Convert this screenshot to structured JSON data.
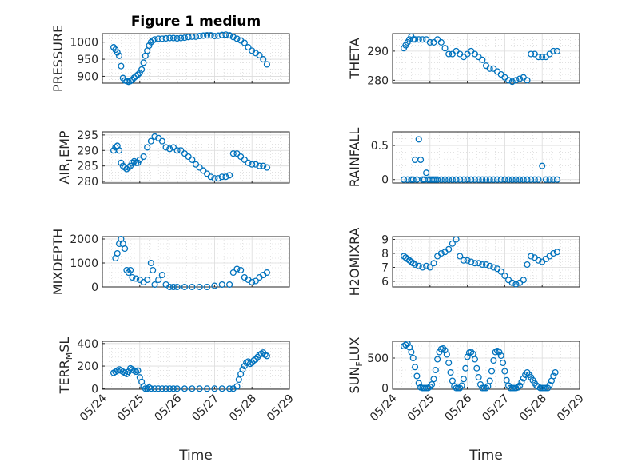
{
  "chart_data": [
    {
      "type": "scatter",
      "title": "Figure 1 medium",
      "ylabel": "PRESSURE",
      "ylabel_main": "PRESSURE",
      "ylabel_sub": "",
      "ylabel_tail": "",
      "xlim": [
        0,
        5
      ],
      "ylim": [
        880,
        1025
      ],
      "yticks": [
        "900",
        "950",
        "1000"
      ],
      "ytick_values": [
        900,
        950,
        1000
      ],
      "x": [
        0.3,
        0.35,
        0.4,
        0.45,
        0.5,
        0.55,
        0.6,
        0.65,
        0.7,
        0.75,
        0.8,
        0.85,
        0.9,
        0.95,
        1.0,
        1.05,
        1.1,
        1.15,
        1.2,
        1.25,
        1.3,
        1.35,
        1.4,
        1.5,
        1.6,
        1.7,
        1.8,
        1.9,
        2.0,
        2.1,
        2.2,
        2.3,
        2.4,
        2.5,
        2.6,
        2.7,
        2.8,
        2.9,
        3.0,
        3.1,
        3.2,
        3.3,
        3.4,
        3.5,
        3.6,
        3.7,
        3.8,
        3.9,
        4.0,
        4.1,
        4.2,
        4.3,
        4.4
      ],
      "y": [
        985,
        978,
        970,
        960,
        930,
        895,
        888,
        886,
        884,
        886,
        890,
        896,
        900,
        905,
        910,
        920,
        940,
        960,
        975,
        990,
        1000,
        1005,
        1008,
        1010,
        1010,
        1011,
        1012,
        1012,
        1011,
        1012,
        1013,
        1015,
        1016,
        1016,
        1018,
        1019,
        1020,
        1020,
        1018,
        1019,
        1021,
        1022,
        1020,
        1015,
        1010,
        1005,
        998,
        985,
        975,
        968,
        962,
        950,
        935
      ]
    },
    {
      "type": "scatter",
      "title": "",
      "ylabel": "THETA",
      "ylabel_main": "THETA",
      "ylabel_sub": "",
      "ylabel_tail": "",
      "xlim": [
        0,
        5
      ],
      "ylim": [
        279,
        296
      ],
      "yticks": [
        "280",
        "290"
      ],
      "ytick_values": [
        280,
        290
      ],
      "x": [
        0.3,
        0.35,
        0.4,
        0.45,
        0.5,
        0.55,
        0.6,
        0.7,
        0.8,
        0.9,
        1.0,
        1.1,
        1.2,
        1.3,
        1.4,
        1.5,
        1.6,
        1.7,
        1.8,
        1.9,
        2.0,
        2.1,
        2.2,
        2.3,
        2.4,
        2.5,
        2.6,
        2.7,
        2.8,
        2.9,
        3.0,
        3.1,
        3.2,
        3.3,
        3.4,
        3.5,
        3.6,
        3.7,
        3.8,
        3.9,
        4.0,
        4.1,
        4.2,
        4.3,
        4.4
      ],
      "y": [
        291,
        292,
        293,
        294,
        295,
        294,
        294,
        294,
        294,
        294,
        293,
        293,
        294,
        293,
        291,
        289,
        289,
        290,
        289,
        288,
        289,
        290,
        289,
        288,
        287,
        285,
        284,
        284,
        283,
        282,
        281,
        280,
        279.5,
        280,
        280.5,
        281,
        280,
        289,
        289,
        288,
        288,
        288,
        289,
        290,
        290
      ]
    },
    {
      "type": "scatter",
      "title": "",
      "ylabel": "AIR_TEMP",
      "ylabel_main": "AIR",
      "ylabel_sub": "T",
      "ylabel_tail": "EMP",
      "xlim": [
        0,
        5
      ],
      "ylim": [
        279.5,
        296
      ],
      "yticks": [
        "280",
        "285",
        "290",
        "295"
      ],
      "ytick_values": [
        280,
        285,
        290,
        295
      ],
      "x": [
        0.3,
        0.35,
        0.4,
        0.45,
        0.5,
        0.55,
        0.6,
        0.65,
        0.7,
        0.75,
        0.8,
        0.85,
        0.9,
        0.95,
        1.0,
        1.1,
        1.2,
        1.3,
        1.4,
        1.5,
        1.6,
        1.7,
        1.8,
        1.9,
        2.0,
        2.1,
        2.2,
        2.3,
        2.4,
        2.5,
        2.6,
        2.7,
        2.8,
        2.9,
        3.0,
        3.1,
        3.2,
        3.3,
        3.4,
        3.5,
        3.6,
        3.7,
        3.8,
        3.9,
        4.0,
        4.1,
        4.2,
        4.3,
        4.4
      ],
      "y": [
        290,
        291,
        291.5,
        290,
        286,
        285,
        284.5,
        284,
        284.5,
        285,
        286,
        286.5,
        286,
        286,
        287,
        288,
        291,
        293,
        294.5,
        294,
        293,
        291,
        290.5,
        291,
        290,
        290,
        289,
        288,
        287,
        285.5,
        284.5,
        283.5,
        282.5,
        281.5,
        281,
        281,
        281.5,
        281.5,
        282,
        289,
        289,
        288,
        287,
        286,
        285.5,
        285.5,
        285,
        285,
        284.5
      ]
    },
    {
      "type": "scatter",
      "title": "",
      "ylabel": "RAINFALL",
      "ylabel_main": "RAINFALL",
      "ylabel_sub": "",
      "ylabel_tail": "",
      "xlim": [
        0,
        5
      ],
      "ylim": [
        -0.05,
        0.7
      ],
      "yticks": [
        "0",
        "0.5"
      ],
      "ytick_values": [
        0,
        0.5
      ],
      "x": [
        0.6,
        0.7,
        0.75,
        0.9,
        0.3,
        0.4,
        0.5,
        0.55,
        0.65,
        0.8,
        0.85,
        0.95,
        1.0,
        1.05,
        1.1,
        1.15,
        1.2,
        1.3,
        1.4,
        1.5,
        1.6,
        1.7,
        1.8,
        1.9,
        2.0,
        2.1,
        2.2,
        2.3,
        2.4,
        2.5,
        2.6,
        2.7,
        2.8,
        2.9,
        3.0,
        3.1,
        3.2,
        3.3,
        3.4,
        3.5,
        3.6,
        3.7,
        3.8,
        3.9,
        4.0,
        4.1,
        4.2,
        4.3,
        4.4
      ],
      "y": [
        0.29,
        0.59,
        0.29,
        0.1,
        0,
        0,
        0,
        0,
        0,
        0,
        0,
        0,
        0,
        0,
        0,
        0,
        0,
        0,
        0,
        0,
        0,
        0,
        0,
        0,
        0,
        0,
        0,
        0,
        0,
        0,
        0,
        0,
        0,
        0,
        0,
        0,
        0,
        0,
        0,
        0,
        0,
        0,
        0,
        0,
        0.2,
        0,
        0,
        0,
        0
      ]
    },
    {
      "type": "scatter",
      "title": "",
      "ylabel": "MIXDEPTH",
      "ylabel_main": "MIXDEPTH",
      "ylabel_sub": "",
      "ylabel_tail": "",
      "xlim": [
        0,
        5
      ],
      "ylim": [
        0,
        2100
      ],
      "yticks": [
        "0",
        "1000",
        "2000"
      ],
      "ytick_values": [
        0,
        1000,
        2000
      ],
      "x": [
        0.35,
        0.4,
        0.45,
        0.5,
        0.55,
        0.6,
        0.65,
        0.7,
        0.75,
        0.8,
        0.9,
        1.0,
        1.1,
        1.2,
        1.3,
        1.35,
        1.4,
        1.5,
        1.6,
        1.7,
        1.8,
        1.9,
        2.0,
        2.2,
        2.4,
        2.6,
        2.8,
        3.0,
        3.2,
        3.4,
        3.5,
        3.6,
        3.7,
        3.8,
        3.9,
        4.0,
        4.1,
        4.2,
        4.3,
        4.4
      ],
      "y": [
        1200,
        1400,
        1800,
        2000,
        1800,
        1600,
        700,
        600,
        700,
        400,
        350,
        300,
        200,
        300,
        1000,
        700,
        100,
        300,
        500,
        100,
        0,
        0,
        0,
        0,
        0,
        0,
        0,
        50,
        100,
        100,
        600,
        750,
        700,
        400,
        300,
        200,
        250,
        400,
        500,
        600
      ]
    },
    {
      "type": "scatter",
      "title": "",
      "ylabel": "H2OMIXRA",
      "ylabel_main": "H2OMIXRA",
      "ylabel_sub": "",
      "ylabel_tail": "",
      "xlim": [
        0,
        5
      ],
      "ylim": [
        5.6,
        9.2
      ],
      "yticks": [
        "6",
        "7",
        "8",
        "9"
      ],
      "ytick_values": [
        6,
        7,
        8,
        9
      ],
      "x": [
        0.3,
        0.35,
        0.4,
        0.45,
        0.5,
        0.55,
        0.6,
        0.7,
        0.8,
        0.9,
        1.0,
        1.1,
        1.2,
        1.3,
        1.4,
        1.5,
        1.6,
        1.7,
        1.8,
        1.9,
        2.0,
        2.1,
        2.2,
        2.3,
        2.4,
        2.5,
        2.6,
        2.7,
        2.8,
        2.9,
        3.0,
        3.1,
        3.2,
        3.3,
        3.4,
        3.5,
        3.6,
        3.7,
        3.8,
        3.9,
        4.0,
        4.1,
        4.2,
        4.3,
        4.4
      ],
      "y": [
        7.8,
        7.7,
        7.6,
        7.5,
        7.4,
        7.3,
        7.2,
        7.1,
        7.0,
        7.1,
        7.0,
        7.3,
        7.8,
        8.0,
        8.1,
        8.3,
        8.7,
        9.0,
        7.8,
        7.5,
        7.5,
        7.4,
        7.3,
        7.3,
        7.2,
        7.2,
        7.1,
        7.0,
        6.9,
        6.7,
        6.4,
        6.1,
        5.9,
        5.8,
        5.9,
        6.1,
        7.2,
        7.8,
        7.7,
        7.5,
        7.4,
        7.6,
        7.8,
        8.0,
        8.1
      ]
    },
    {
      "type": "scatter",
      "title": "",
      "ylabel": "TERR_MSL",
      "ylabel_main": "TERR",
      "ylabel_sub": "M",
      "ylabel_tail": "SL",
      "xlim": [
        0,
        5
      ],
      "ylim": [
        -5,
        420
      ],
      "yticks": [
        "0",
        "200",
        "400"
      ],
      "ytick_values": [
        0,
        200,
        400
      ],
      "x": [
        0.3,
        0.35,
        0.4,
        0.45,
        0.5,
        0.55,
        0.6,
        0.65,
        0.7,
        0.75,
        0.8,
        0.85,
        0.9,
        0.95,
        1.0,
        1.05,
        1.1,
        1.15,
        1.2,
        1.25,
        1.3,
        1.4,
        1.5,
        1.6,
        1.7,
        1.8,
        1.9,
        2.0,
        2.2,
        2.4,
        2.6,
        2.8,
        3.0,
        3.2,
        3.4,
        3.5,
        3.6,
        3.65,
        3.7,
        3.75,
        3.8,
        3.85,
        3.9,
        3.95,
        4.0,
        4.05,
        4.1,
        4.15,
        4.2,
        4.25,
        4.3,
        4.35,
        4.4
      ],
      "y": [
        140,
        150,
        160,
        170,
        160,
        150,
        140,
        130,
        150,
        180,
        170,
        160,
        150,
        160,
        100,
        60,
        20,
        0,
        0,
        10,
        0,
        0,
        0,
        0,
        0,
        0,
        0,
        0,
        0,
        0,
        0,
        0,
        0,
        0,
        0,
        0,
        20,
        80,
        130,
        170,
        200,
        230,
        240,
        220,
        230,
        250,
        260,
        280,
        300,
        310,
        320,
        300,
        290
      ]
    },
    {
      "type": "scatter",
      "title": "",
      "ylabel": "SUN_FLUX",
      "ylabel_main": "SUN",
      "ylabel_sub": "F",
      "ylabel_tail": "LUX",
      "xlim": [
        0,
        5
      ],
      "ylim": [
        -20,
        780
      ],
      "yticks": [
        "0",
        "500"
      ],
      "ytick_values": [
        0,
        500
      ],
      "x": [
        0.3,
        0.35,
        0.4,
        0.45,
        0.5,
        0.55,
        0.6,
        0.65,
        0.7,
        0.75,
        0.8,
        0.85,
        0.9,
        0.95,
        1.0,
        1.05,
        1.1,
        1.15,
        1.2,
        1.25,
        1.3,
        1.35,
        1.4,
        1.45,
        1.5,
        1.55,
        1.6,
        1.65,
        1.7,
        1.75,
        1.8,
        1.85,
        1.9,
        1.95,
        2.0,
        2.05,
        2.1,
        2.15,
        2.2,
        2.25,
        2.3,
        2.35,
        2.4,
        2.45,
        2.5,
        2.55,
        2.6,
        2.65,
        2.7,
        2.75,
        2.8,
        2.85,
        2.9,
        2.95,
        3.0,
        3.05,
        3.1,
        3.15,
        3.2,
        3.25,
        3.3,
        3.35,
        3.4,
        3.45,
        3.5,
        3.55,
        3.6,
        3.65,
        3.7,
        3.75,
        3.8,
        3.85,
        3.9,
        3.95,
        4.0,
        4.05,
        4.1,
        4.15,
        4.2,
        4.25,
        4.3,
        4.35
      ],
      "y": [
        700,
        720,
        740,
        680,
        600,
        500,
        350,
        200,
        80,
        10,
        0,
        0,
        0,
        0,
        20,
        60,
        150,
        300,
        480,
        600,
        650,
        660,
        630,
        560,
        420,
        260,
        120,
        30,
        0,
        0,
        0,
        40,
        150,
        330,
        520,
        590,
        600,
        570,
        480,
        330,
        180,
        60,
        0,
        0,
        0,
        30,
        120,
        280,
        460,
        600,
        620,
        600,
        540,
        420,
        280,
        130,
        40,
        0,
        0,
        0,
        0,
        10,
        40,
        100,
        160,
        220,
        260,
        220,
        180,
        130,
        80,
        40,
        20,
        0,
        0,
        0,
        0,
        0,
        50,
        120,
        200,
        260
      ]
    }
  ],
  "xaxis": {
    "label": "Time",
    "ticks": [
      "05/24",
      "05/25",
      "05/26",
      "05/27",
      "05/28",
      "05/29"
    ]
  },
  "colors": {
    "marker": "#0072BD",
    "axis": "#262626",
    "grid": "#dcdcdc"
  }
}
